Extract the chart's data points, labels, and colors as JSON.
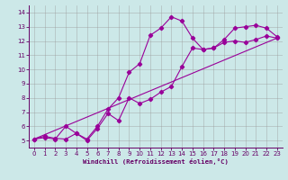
{
  "xlabel": "Windchill (Refroidissement éolien,°C)",
  "bg_color": "#cce8e8",
  "line_color": "#990099",
  "grid_color": "#999999",
  "spine_color": "#660066",
  "tick_color": "#660066",
  "xlim": [
    -0.5,
    23.5
  ],
  "ylim": [
    4.5,
    14.5
  ],
  "xticks": [
    0,
    1,
    2,
    3,
    4,
    5,
    6,
    7,
    8,
    9,
    10,
    11,
    12,
    13,
    14,
    15,
    16,
    17,
    18,
    19,
    20,
    21,
    22,
    23
  ],
  "yticks": [
    5,
    6,
    7,
    8,
    9,
    10,
    11,
    12,
    13,
    14
  ],
  "series1_x": [
    0,
    1,
    2,
    3,
    4,
    5,
    6,
    7,
    8,
    9,
    10,
    11,
    12,
    13,
    14,
    15,
    16,
    17,
    18,
    19,
    20,
    21,
    22,
    23
  ],
  "series1_y": [
    5.1,
    5.3,
    5.15,
    5.1,
    5.5,
    5.1,
    6.0,
    7.2,
    8.0,
    9.8,
    10.4,
    12.4,
    12.9,
    13.7,
    13.4,
    12.2,
    11.4,
    11.5,
    12.1,
    12.9,
    13.0,
    13.1,
    12.9,
    12.3
  ],
  "series2_x": [
    0,
    1,
    2,
    3,
    4,
    5,
    6,
    7,
    8,
    9,
    10,
    11,
    12,
    13,
    14,
    15,
    16,
    17,
    18,
    19,
    20,
    21,
    22,
    23
  ],
  "series2_y": [
    5.1,
    5.2,
    5.1,
    6.0,
    5.5,
    5.0,
    5.85,
    6.9,
    6.4,
    8.0,
    7.6,
    7.9,
    8.4,
    8.8,
    10.2,
    11.5,
    11.4,
    11.5,
    11.9,
    12.0,
    11.9,
    12.1,
    12.35,
    12.2
  ],
  "series3_x": [
    0,
    23
  ],
  "series3_y": [
    5.1,
    12.2
  ]
}
